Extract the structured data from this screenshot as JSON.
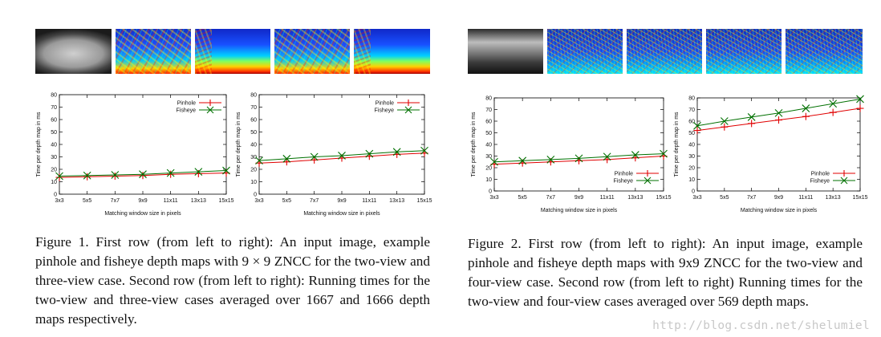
{
  "figure1": {
    "images": [
      "input-image",
      "pinhole-depth-two-view",
      "fisheye-depth-two-view",
      "pinhole-depth-three-view",
      "fisheye-depth-three-view"
    ],
    "caption": "Figure 1. First row (from left to right): An input image, example pinhole and fisheye depth maps with 9 × 9 ZNCC for the two-view and three-view case.  Second row (from left to right): Running times for the two-view and three-view cases averaged over 1667 and 1666 depth maps respectively."
  },
  "figure2": {
    "images": [
      "input-image",
      "pinhole-depth-two-view",
      "fisheye-depth-two-view",
      "pinhole-depth-four-view",
      "fisheye-depth-four-view"
    ],
    "caption": "Figure 2. First row (from left to right): An input image, example pinhole and fisheye depth maps with 9x9 ZNCC for the two-view and four-view case. Second row (from left to right) Running times for the two-view and four-view cases averaged over 569 depth maps."
  },
  "watermark": "http://blog.csdn.net/shelumiel",
  "colors": {
    "pinhole": "#e00000",
    "fisheye": "#007000"
  },
  "chart_data": [
    {
      "id": "fig1-two-view",
      "type": "line",
      "categories": [
        "3x3",
        "5x5",
        "7x7",
        "9x9",
        "11x11",
        "13x13",
        "15x15"
      ],
      "xlabel": "Matching window size in pixels",
      "ylabel": "Time per depth map in ms",
      "ylim": [
        0,
        80
      ],
      "yticks": [
        0,
        10,
        20,
        30,
        40,
        50,
        60,
        70,
        80
      ],
      "legend": "top-right",
      "series": [
        {
          "name": "Pinhole",
          "values": [
            13.5,
            14,
            14.5,
            15,
            16,
            16.5,
            17
          ]
        },
        {
          "name": "Fisheye",
          "values": [
            14.5,
            15,
            15.5,
            16,
            17,
            18,
            19
          ]
        }
      ]
    },
    {
      "id": "fig1-three-view",
      "type": "line",
      "categories": [
        "3x3",
        "5x5",
        "7x7",
        "9x9",
        "11x11",
        "13x13",
        "15x15"
      ],
      "xlabel": "Matching window size in pixels",
      "ylabel": "Time per depth map in ms",
      "ylim": [
        0,
        80
      ],
      "yticks": [
        0,
        10,
        20,
        30,
        40,
        50,
        60,
        70,
        80
      ],
      "legend": "top-right",
      "series": [
        {
          "name": "Pinhole",
          "values": [
            25,
            26,
            27.5,
            29,
            30.5,
            32,
            33
          ]
        },
        {
          "name": "Fisheye",
          "values": [
            27,
            28.5,
            30,
            31,
            32.5,
            34,
            35
          ]
        }
      ]
    },
    {
      "id": "fig2-two-view",
      "type": "line",
      "categories": [
        "3x3",
        "5x5",
        "7x7",
        "9x9",
        "11x11",
        "13x13",
        "15x15"
      ],
      "xlabel": "Matching window size in pixels",
      "ylabel": "Time per depth map in ms",
      "ylim": [
        0,
        80
      ],
      "yticks": [
        0,
        10,
        20,
        30,
        40,
        50,
        60,
        70,
        80
      ],
      "legend": "bottom-right",
      "series": [
        {
          "name": "Pinhole",
          "values": [
            23,
            24,
            25,
            26,
            27,
            28.5,
            30
          ]
        },
        {
          "name": "Fisheye",
          "values": [
            25,
            26,
            27,
            28,
            29.5,
            31,
            32
          ]
        }
      ]
    },
    {
      "id": "fig2-four-view",
      "type": "line",
      "categories": [
        "3x3",
        "5x5",
        "7x7",
        "9x9",
        "11x11",
        "13x13",
        "15x15"
      ],
      "xlabel": "Matching window size in pixels",
      "ylabel": "Time per depth map in ms",
      "ylim": [
        0,
        80
      ],
      "yticks": [
        0,
        10,
        20,
        30,
        40,
        50,
        60,
        70,
        80
      ],
      "legend": "bottom-right",
      "series": [
        {
          "name": "Pinhole",
          "values": [
            52,
            55,
            58,
            61,
            64,
            67.5,
            71
          ]
        },
        {
          "name": "Fisheye",
          "values": [
            56,
            60,
            63.5,
            67,
            71,
            75,
            79
          ]
        }
      ]
    }
  ]
}
